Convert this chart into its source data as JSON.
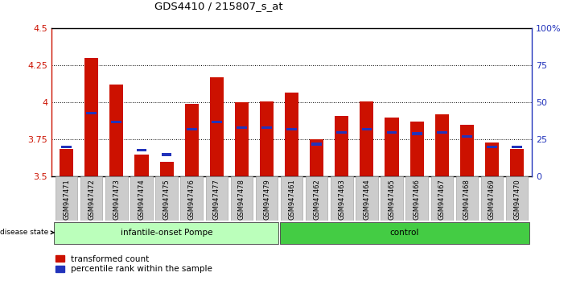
{
  "title": "GDS4410 / 215807_s_at",
  "samples": [
    "GSM947471",
    "GSM947472",
    "GSM947473",
    "GSM947474",
    "GSM947475",
    "GSM947476",
    "GSM947477",
    "GSM947478",
    "GSM947479",
    "GSM947461",
    "GSM947462",
    "GSM947463",
    "GSM947464",
    "GSM947465",
    "GSM947466",
    "GSM947467",
    "GSM947468",
    "GSM947469",
    "GSM947470"
  ],
  "red_values": [
    3.69,
    4.3,
    4.12,
    3.65,
    3.6,
    3.99,
    4.17,
    4.0,
    4.01,
    4.07,
    3.75,
    3.91,
    4.01,
    3.9,
    3.87,
    3.92,
    3.85,
    3.73,
    3.69
  ],
  "blue_values": [
    3.7,
    3.93,
    3.87,
    3.68,
    3.65,
    3.82,
    3.87,
    3.83,
    3.83,
    3.82,
    3.72,
    3.8,
    3.82,
    3.8,
    3.79,
    3.8,
    3.77,
    3.7,
    3.7
  ],
  "group_split": 9,
  "group1_label": "infantile-onset Pompe",
  "group2_label": "control",
  "disease_state_label": "disease state",
  "ymin": 3.5,
  "ymax": 4.5,
  "yticks": [
    3.5,
    3.75,
    4.0,
    4.25,
    4.5
  ],
  "ytick_labels": [
    "3.5",
    "3.75",
    "4",
    "4.25",
    "4.5"
  ],
  "right_yticks": [
    0,
    25,
    50,
    75,
    100
  ],
  "right_ytick_labels": [
    "0",
    "25",
    "50",
    "75",
    "100%"
  ],
  "bar_color": "#cc1100",
  "blue_color": "#2233bb",
  "xtick_bg_color": "#cccccc",
  "group1_color": "#bbffbb",
  "group2_color": "#44cc44",
  "legend_red_label": "transformed count",
  "legend_blue_label": "percentile rank within the sample"
}
